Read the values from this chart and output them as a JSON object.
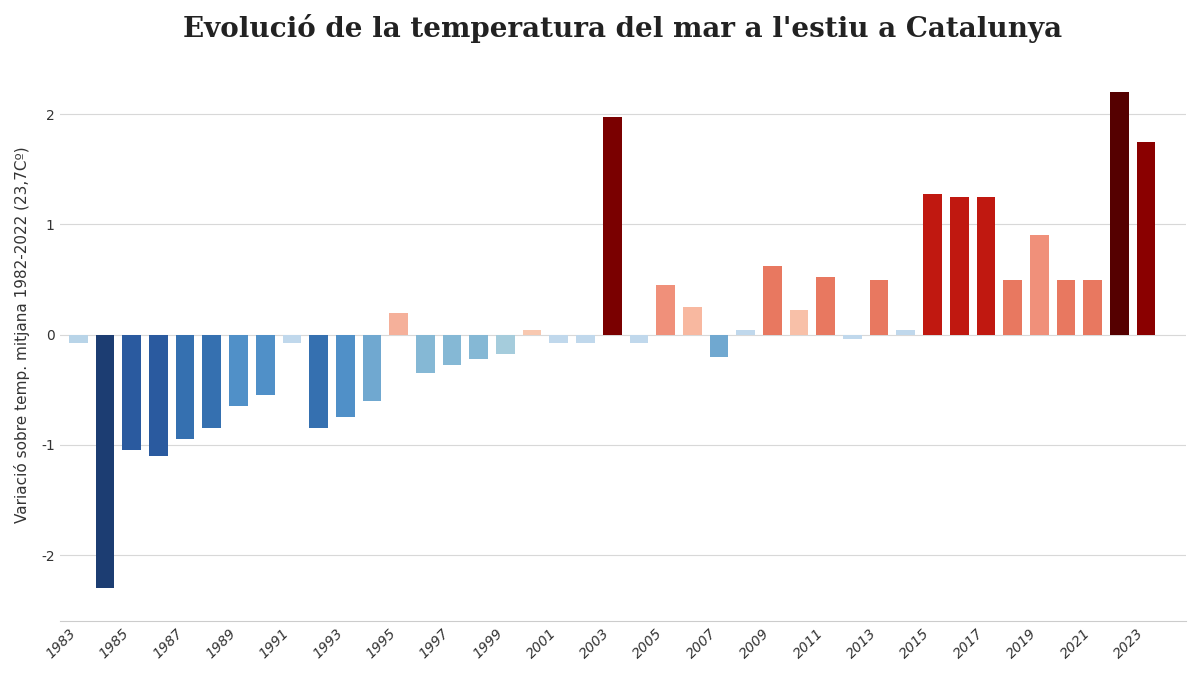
{
  "title": "Evolució de la temperatura del mar a l'estiu a Catalunya",
  "ylabel": "Variació sobre temp. mitjana 1982-2022 (23,7Cº)",
  "years": [
    1983,
    1984,
    1985,
    1986,
    1987,
    1988,
    1989,
    1990,
    1991,
    1992,
    1993,
    1994,
    1995,
    1996,
    1997,
    1998,
    1999,
    2000,
    2001,
    2002,
    2003,
    2004,
    2005,
    2006,
    2007,
    2008,
    2009,
    2010,
    2011,
    2012,
    2013,
    2014,
    2015,
    2016,
    2017,
    2018,
    2019,
    2020,
    2021,
    2022,
    2023
  ],
  "values": [
    -0.08,
    -2.3,
    -1.05,
    -1.1,
    -0.95,
    -0.85,
    -0.65,
    -0.55,
    -0.08,
    -0.85,
    -0.75,
    -0.6,
    0.2,
    -0.35,
    -0.28,
    -0.22,
    -0.18,
    0.04,
    -0.08,
    -0.08,
    1.97,
    -0.08,
    0.45,
    0.25,
    -0.2,
    0.04,
    0.62,
    0.22,
    0.52,
    -0.04,
    0.5,
    0.04,
    1.28,
    1.25,
    1.25,
    0.5,
    0.9,
    0.5,
    0.5,
    2.2,
    1.75
  ],
  "colors": [
    "#b8d4e8",
    "#1c3d72",
    "#2a5a9f",
    "#2a5a9f",
    "#3570b0",
    "#3570b0",
    "#5090c8",
    "#5090c8",
    "#c0d8ec",
    "#3570b0",
    "#5090c8",
    "#70a8d0",
    "#f5b09a",
    "#85b8d5",
    "#85b8d5",
    "#85b8d5",
    "#a5ccdc",
    "#f8c8b0",
    "#c0d8ec",
    "#c0d8ec",
    "#7a0000",
    "#c0d8ec",
    "#f0907a",
    "#f8b8a0",
    "#70a8d0",
    "#c0d8ec",
    "#e87860",
    "#f8c0a8",
    "#e87860",
    "#c0d8ec",
    "#e87860",
    "#c0d8ec",
    "#c01810",
    "#c01810",
    "#c01810",
    "#e87860",
    "#f0907a",
    "#e87860",
    "#e87860",
    "#550000",
    "#8a0000"
  ],
  "background_color": "#ffffff",
  "plot_bg": "#ffffff",
  "xlim": [
    1982.3,
    2024.5
  ],
  "ylim": [
    -2.6,
    2.6
  ],
  "yticks": [
    -2,
    -1,
    0,
    1,
    2
  ],
  "xticks": [
    1983,
    1985,
    1987,
    1989,
    1991,
    1993,
    1995,
    1997,
    1999,
    2001,
    2003,
    2005,
    2007,
    2009,
    2011,
    2013,
    2015,
    2017,
    2019,
    2021,
    2023
  ],
  "bar_width": 0.7,
  "title_fontsize": 20,
  "ylabel_fontsize": 11,
  "tick_fontsize": 10,
  "grid_color": "#d8d8d8",
  "title_color": "#222222"
}
